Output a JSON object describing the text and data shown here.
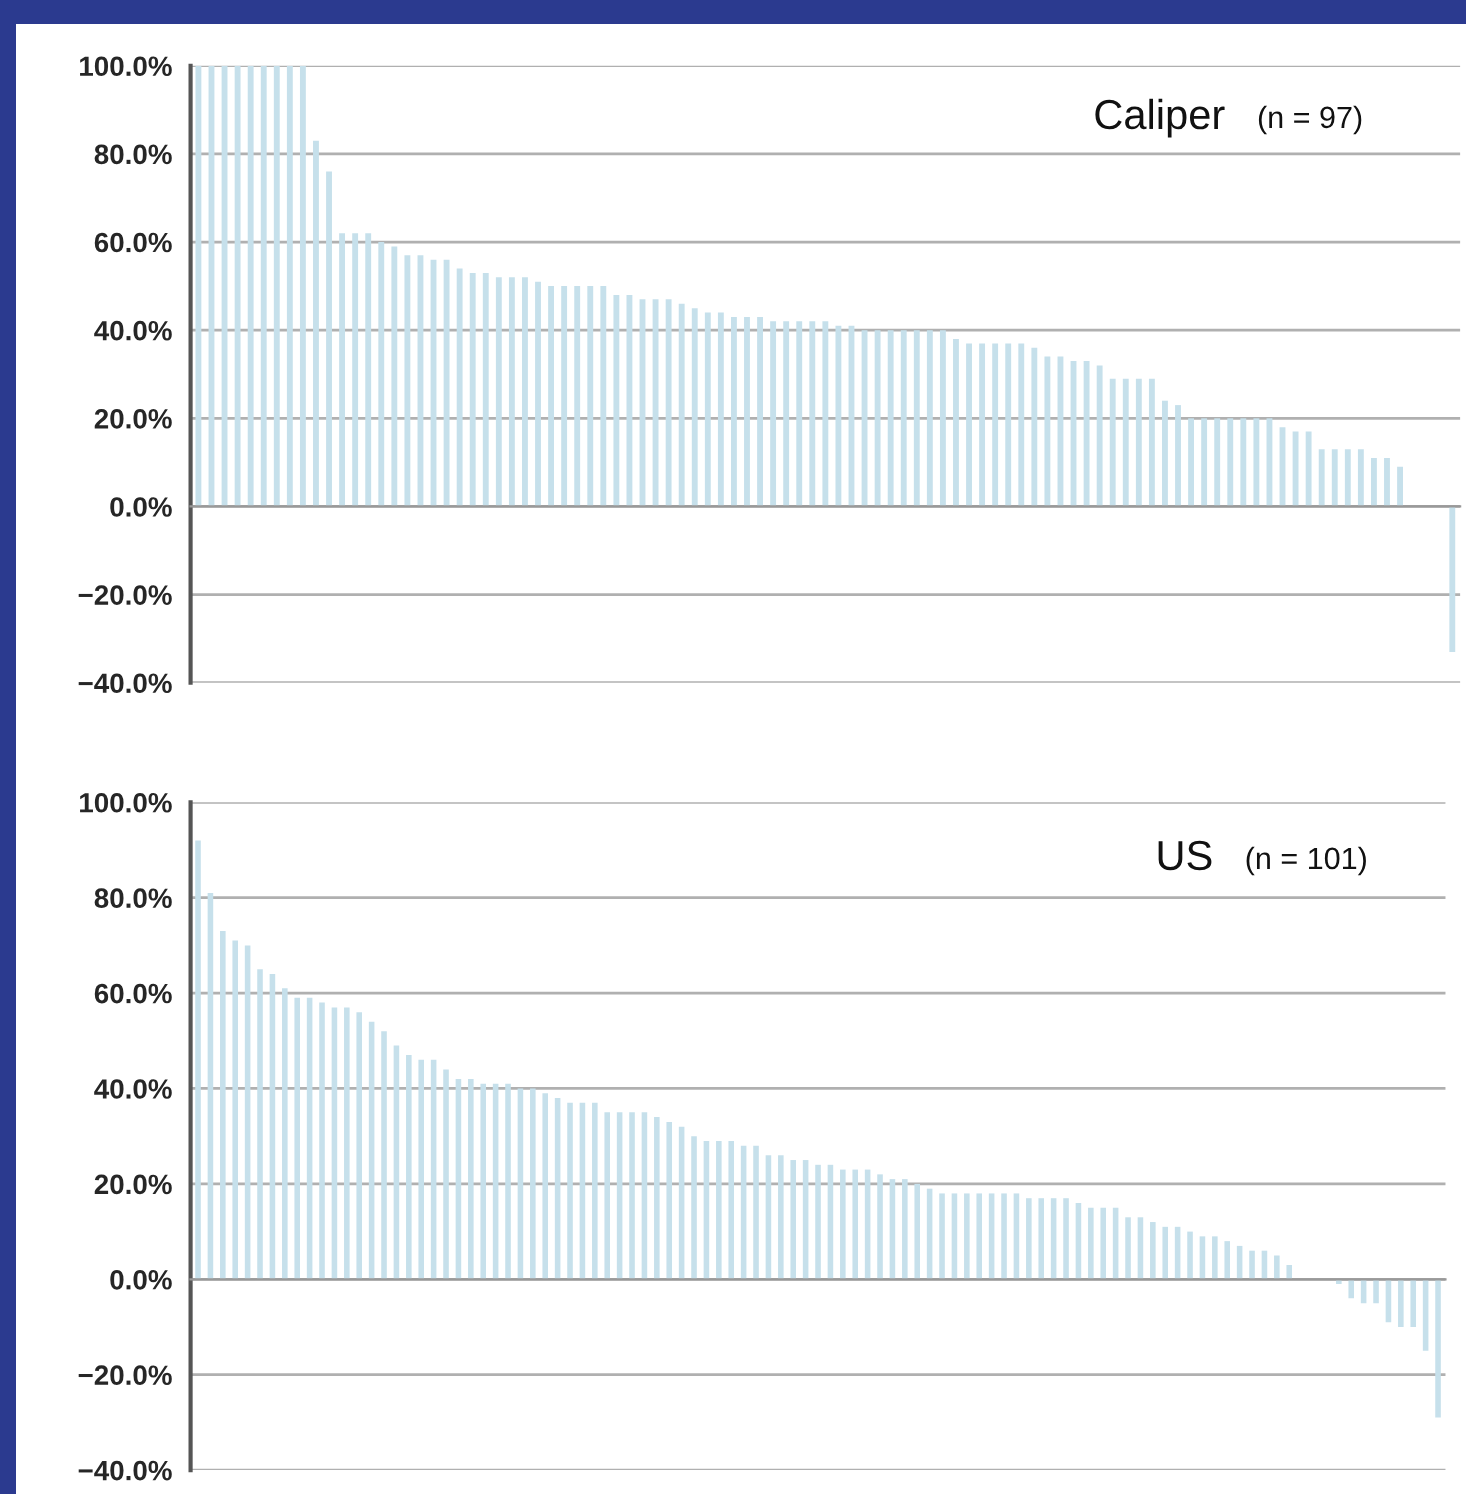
{
  "chart_data": [
    {
      "type": "bar",
      "categories": [
        null,
        null,
        null,
        null,
        null,
        null,
        null,
        null,
        null,
        null,
        null,
        null,
        null,
        null,
        null,
        null,
        null,
        null,
        null,
        null,
        null,
        null,
        null,
        null,
        null,
        null,
        null,
        null,
        null,
        null,
        null,
        null,
        null,
        null,
        null,
        null,
        null,
        null,
        null,
        null,
        null,
        null,
        null,
        null,
        null,
        null,
        null,
        null,
        null,
        null,
        null,
        null,
        null,
        null,
        null,
        null,
        null,
        null,
        null,
        null,
        null,
        null,
        null,
        null,
        null,
        null,
        null,
        null,
        null,
        null,
        null,
        null,
        null,
        null,
        null,
        null,
        null,
        null,
        null,
        null,
        null,
        null,
        null,
        null,
        null,
        null,
        null,
        null,
        null,
        null,
        null,
        null,
        null,
        null,
        null,
        null,
        null
      ],
      "values": [
        100,
        100,
        100,
        100,
        100,
        100,
        100,
        100,
        100,
        83,
        76,
        62,
        62,
        62,
        60,
        59,
        57,
        57,
        56,
        56,
        54,
        53,
        53,
        52,
        52,
        52,
        51,
        50,
        50,
        50,
        50,
        50,
        48,
        48,
        47,
        47,
        47,
        46,
        45,
        44,
        44,
        43,
        43,
        43,
        42,
        42,
        42,
        42,
        42,
        41,
        41,
        40,
        40,
        40,
        40,
        40,
        40,
        40,
        38,
        37,
        37,
        37,
        37,
        37,
        36,
        34,
        34,
        33,
        33,
        32,
        29,
        29,
        29,
        29,
        24,
        23,
        20,
        20,
        20,
        20,
        20,
        20,
        20,
        18,
        17,
        17,
        13,
        13,
        13,
        13,
        11,
        11,
        9,
        0,
        0,
        0,
        -33
      ],
      "color": "#c6e0eb",
      "ylim": [
        -40,
        100
      ],
      "yticks": [
        {
          "value": -40,
          "label": "−40.0%"
        },
        {
          "value": -20,
          "label": "−20.0%"
        },
        {
          "value": 0,
          "label": "0.0%"
        },
        {
          "value": 20,
          "label": "20.0%"
        },
        {
          "value": 40,
          "label": "40.0%"
        },
        {
          "value": 60,
          "label": "60.0%"
        },
        {
          "value": 80,
          "label": "80.0%"
        },
        {
          "value": 100,
          "label": "100.0%"
        }
      ],
      "grid": "y",
      "tick_labels": "y",
      "annotations": [
        "Caliper",
        "(n = 97)"
      ]
    },
    {
      "type": "bar",
      "categories": [
        null,
        null,
        null,
        null,
        null,
        null,
        null,
        null,
        null,
        null,
        null,
        null,
        null,
        null,
        null,
        null,
        null,
        null,
        null,
        null,
        null,
        null,
        null,
        null,
        null,
        null,
        null,
        null,
        null,
        null,
        null,
        null,
        null,
        null,
        null,
        null,
        null,
        null,
        null,
        null,
        null,
        null,
        null,
        null,
        null,
        null,
        null,
        null,
        null,
        null,
        null,
        null,
        null,
        null,
        null,
        null,
        null,
        null,
        null,
        null,
        null,
        null,
        null,
        null,
        null,
        null,
        null,
        null,
        null,
        null,
        null,
        null,
        null,
        null,
        null,
        null,
        null,
        null,
        null,
        null,
        null,
        null,
        null,
        null,
        null,
        null,
        null,
        null,
        null,
        null,
        null,
        null,
        null,
        null,
        null,
        null,
        null,
        null,
        null,
        null,
        null
      ],
      "values": [
        92,
        81,
        73,
        71,
        70,
        65,
        64,
        61,
        59,
        59,
        58,
        57,
        57,
        56,
        54,
        52,
        49,
        47,
        46,
        46,
        44,
        42,
        42,
        41,
        41,
        41,
        40,
        40,
        39,
        38,
        37,
        37,
        37,
        35,
        35,
        35,
        35,
        34,
        33,
        32,
        30,
        29,
        29,
        29,
        28,
        28,
        26,
        26,
        25,
        25,
        24,
        24,
        23,
        23,
        23,
        22,
        21,
        21,
        20,
        19,
        18,
        18,
        18,
        18,
        18,
        18,
        18,
        17,
        17,
        17,
        17,
        16,
        15,
        15,
        15,
        13,
        13,
        12,
        11,
        11,
        10,
        9,
        9,
        8,
        7,
        6,
        6,
        5,
        3,
        0,
        0,
        0,
        -1,
        -4,
        -5,
        -5,
        -9,
        -10,
        -10,
        -15,
        -29
      ],
      "color": "#c6e0eb",
      "ylim": [
        -40,
        100
      ],
      "yticks": [
        {
          "value": -40,
          "label": "−40.0%"
        },
        {
          "value": -20,
          "label": "−20.0%"
        },
        {
          "value": 0,
          "label": "0.0%"
        },
        {
          "value": 20,
          "label": "20.0%"
        },
        {
          "value": 40,
          "label": "40.0%"
        },
        {
          "value": 60,
          "label": "60.0%"
        },
        {
          "value": 80,
          "label": "80.0%"
        },
        {
          "value": 100,
          "label": "100.0%"
        }
      ],
      "grid": "y",
      "tick_labels": "y",
      "annotations": [
        "US",
        "(n = 101)"
      ]
    }
  ]
}
